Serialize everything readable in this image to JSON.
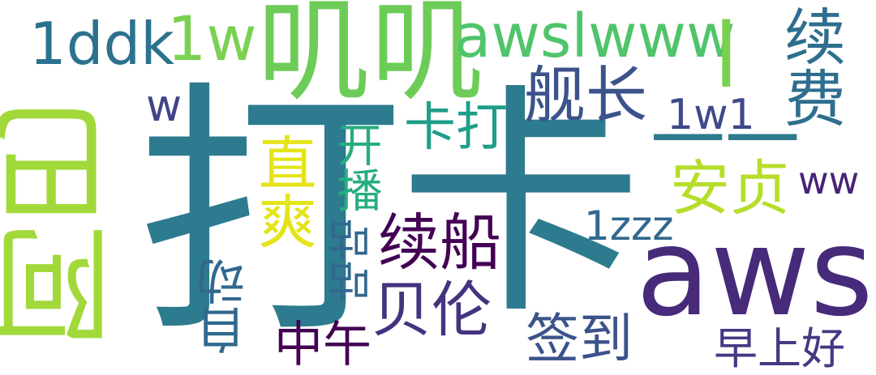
{
  "words": [
    {
      "id": "w-da",
      "text": "打",
      "color": "#2d7b8e"
    },
    {
      "id": "w-ka",
      "text": "卡",
      "color": "#2d7b8e"
    },
    {
      "id": "w-abo",
      "text": "阿巴",
      "color": "#a2d93a"
    },
    {
      "id": "w-jiji",
      "text": "叽叽",
      "color": "#6dcc58"
    },
    {
      "id": "w-awsl",
      "text": "awsl",
      "color": "#472a7a"
    },
    {
      "id": "w-awslwww",
      "text": "awslwww",
      "color": "#50c46a"
    },
    {
      "id": "w-1ddk",
      "text": "1ddk",
      "color": "#2c728e"
    },
    {
      "id": "w-1w",
      "text": "1w",
      "color": "#7ad151"
    },
    {
      "id": "w-l",
      "text": "l",
      "color": "#7ad151"
    },
    {
      "id": "w-jianzhang",
      "text": "舰长",
      "color": "#3b528b"
    },
    {
      "id": "w-xufei",
      "text": "续费",
      "color": "#2e6e8e"
    },
    {
      "id": "w-katda",
      "text": "卡打",
      "color": "#1f9e89"
    },
    {
      "id": "w-1w1",
      "text": "1w1",
      "color": "#3e4989"
    },
    {
      "id": "w-w",
      "text": "w",
      "color": "#414487"
    },
    {
      "id": "w-dash",
      "text": "一一",
      "color": "#2d7b8e"
    },
    {
      "id": "w-zhishuang",
      "text": "直爽",
      "color": "#e4e419"
    },
    {
      "id": "w-kaibo",
      "text": "开播",
      "color": "#27ad81"
    },
    {
      "id": "w-anzhen",
      "text": "安贞",
      "color": "#b5de2b"
    },
    {
      "id": "w-ww",
      "text": "ww",
      "color": "#482475"
    },
    {
      "id": "w-xuchuan",
      "text": "续船",
      "color": "#440154"
    },
    {
      "id": "w-1zzz",
      "text": "1zzz",
      "color": "#31688e"
    },
    {
      "id": "w-gugu",
      "text": "咕咕",
      "color": "#31688e"
    },
    {
      "id": "w-beilun",
      "text": "贝伦",
      "color": "#46337f"
    },
    {
      "id": "w-zidong",
      "text": "自动",
      "color": "#31688e"
    },
    {
      "id": "w-zhongwu",
      "text": "中午",
      "color": "#440154"
    },
    {
      "id": "w-qiandao",
      "text": "签到",
      "color": "#3b528b"
    },
    {
      "id": "w-zaoshanghao",
      "text": "早上好",
      "color": "#443983"
    }
  ]
}
